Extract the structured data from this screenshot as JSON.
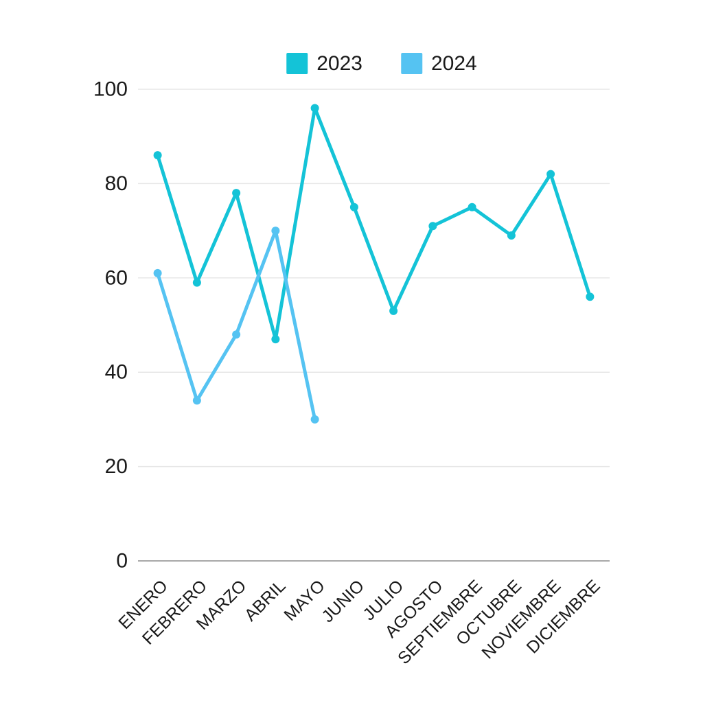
{
  "chart_data": {
    "type": "line",
    "categories": [
      "ENERO",
      "FEBRERO",
      "MARZO",
      "ABRIL",
      "MAYO",
      "JUNIO",
      "JULIO",
      "AGOSTO",
      "SEPTIEMBRE",
      "OCTUBRE",
      "NOVIEMBRE",
      "DICIEMBRE"
    ],
    "series": [
      {
        "name": "2023",
        "color": "#14c3d7",
        "values": [
          86,
          59,
          78,
          47,
          96,
          75,
          53,
          71,
          75,
          69,
          82,
          56
        ]
      },
      {
        "name": "2024",
        "color": "#55c3f2",
        "values": [
          61,
          34,
          48,
          70,
          30,
          null,
          null,
          null,
          null,
          null,
          null,
          null
        ]
      }
    ],
    "title": "",
    "xlabel": "",
    "ylabel": "",
    "ylim": [
      0,
      100
    ],
    "yticks": [
      0,
      20,
      40,
      60,
      80,
      100
    ],
    "grid": true,
    "legend_position": "top-center",
    "colors": {
      "gridline": "#e7e7e7",
      "axis_line": "#a8a8a8",
      "tick_text": "#1a1a1a",
      "background": "#ffffff"
    }
  }
}
